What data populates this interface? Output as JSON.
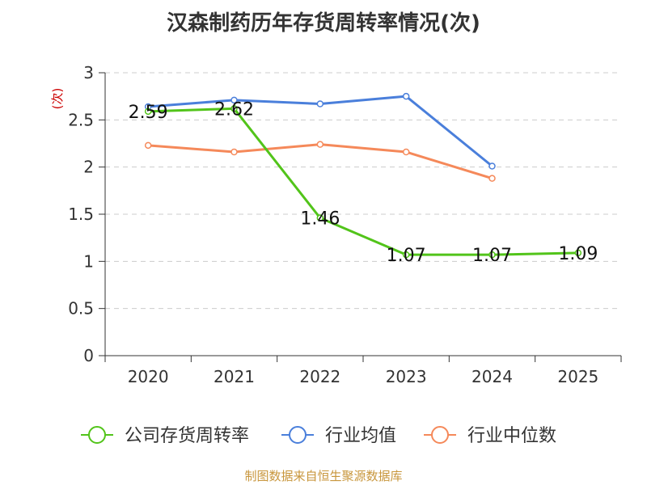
{
  "chart_data": {
    "type": "line",
    "title": "汉森制药历年存货周转率情况(次)",
    "ylabel": "(次)",
    "xlabel": "",
    "ylim": [
      0,
      3
    ],
    "y_ticks": [
      0,
      0.5,
      1,
      1.5,
      2,
      2.5,
      3
    ],
    "categories": [
      "2020",
      "2021",
      "2022",
      "2023",
      "2024",
      "2025"
    ],
    "series": [
      {
        "name": "公司存货周转率",
        "color": "#52c41a",
        "values": [
          2.59,
          2.62,
          1.46,
          1.07,
          1.07,
          1.09
        ],
        "labels": [
          "2.59",
          "2.62",
          "1.46",
          "1.07",
          "1.07",
          "1.09"
        ]
      },
      {
        "name": "行业均值",
        "color": "#4a7fdb",
        "values": [
          2.64,
          2.71,
          2.67,
          2.75,
          2.01,
          null
        ],
        "labels": []
      },
      {
        "name": "行业中位数",
        "color": "#f5895a",
        "values": [
          2.23,
          2.16,
          2.24,
          2.16,
          1.88,
          null
        ],
        "labels": []
      }
    ],
    "grid": true,
    "legend": "bottom"
  },
  "source": "制图数据来自恒生聚源数据库"
}
